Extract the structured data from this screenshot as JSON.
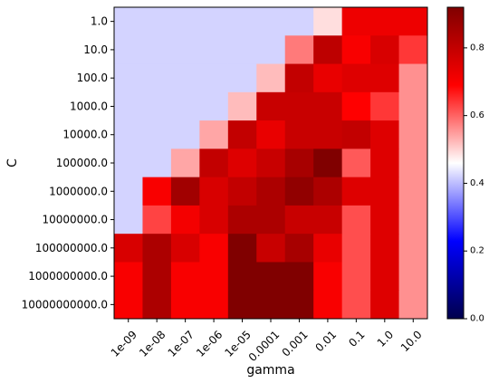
{
  "chart_data": {
    "type": "heatmap",
    "title": "",
    "xlabel": "gamma",
    "ylabel": "C",
    "x_categories": [
      "1e-09",
      "1e-08",
      "1e-07",
      "1e-06",
      "1e-05",
      "0.0001",
      "0.001",
      "0.01",
      "0.1",
      "1.0",
      "10.0"
    ],
    "y_categories": [
      "1.0",
      "10.0",
      "100.0",
      "1000.0",
      "10000.0",
      "100000.0",
      "1000000.0",
      "10000000.0",
      "100000000.0",
      "1000000000.0",
      "10000000000.0"
    ],
    "values": [
      [
        0.42,
        0.42,
        0.42,
        0.42,
        0.42,
        0.42,
        0.42,
        0.49,
        0.72,
        0.72,
        0.72
      ],
      [
        0.42,
        0.42,
        0.42,
        0.42,
        0.42,
        0.42,
        0.58,
        0.81,
        0.7,
        0.76,
        0.64
      ],
      [
        0.42,
        0.42,
        0.42,
        0.42,
        0.42,
        0.52,
        0.8,
        0.73,
        0.75,
        0.75,
        0.56
      ],
      [
        0.42,
        0.42,
        0.42,
        0.42,
        0.52,
        0.79,
        0.79,
        0.79,
        0.69,
        0.64,
        0.56
      ],
      [
        0.42,
        0.42,
        0.42,
        0.54,
        0.8,
        0.73,
        0.79,
        0.79,
        0.8,
        0.75,
        0.56
      ],
      [
        0.42,
        0.42,
        0.54,
        0.8,
        0.75,
        0.79,
        0.85,
        0.92,
        0.61,
        0.75,
        0.56
      ],
      [
        0.42,
        0.7,
        0.86,
        0.76,
        0.8,
        0.84,
        0.89,
        0.84,
        0.75,
        0.75,
        0.56
      ],
      [
        0.42,
        0.63,
        0.71,
        0.76,
        0.84,
        0.84,
        0.79,
        0.79,
        0.62,
        0.75,
        0.56
      ],
      [
        0.76,
        0.84,
        0.76,
        0.7,
        0.93,
        0.79,
        0.85,
        0.73,
        0.62,
        0.75,
        0.56
      ],
      [
        0.7,
        0.84,
        0.7,
        0.7,
        0.93,
        0.99,
        0.93,
        0.7,
        0.62,
        0.75,
        0.56
      ],
      [
        0.7,
        0.84,
        0.7,
        0.7,
        0.93,
        0.99,
        0.93,
        0.7,
        0.62,
        0.75,
        0.56
      ]
    ],
    "colormap": "seismic",
    "vmin": 0.0,
    "vmax": 0.92,
    "colorbar": {
      "ticks": [
        "0.0",
        "0.2",
        "0.4",
        "0.6",
        "0.8"
      ],
      "tick_values": [
        0.0,
        0.2,
        0.4,
        0.6,
        0.8
      ]
    },
    "legend": "colorbar right",
    "grid": false
  }
}
